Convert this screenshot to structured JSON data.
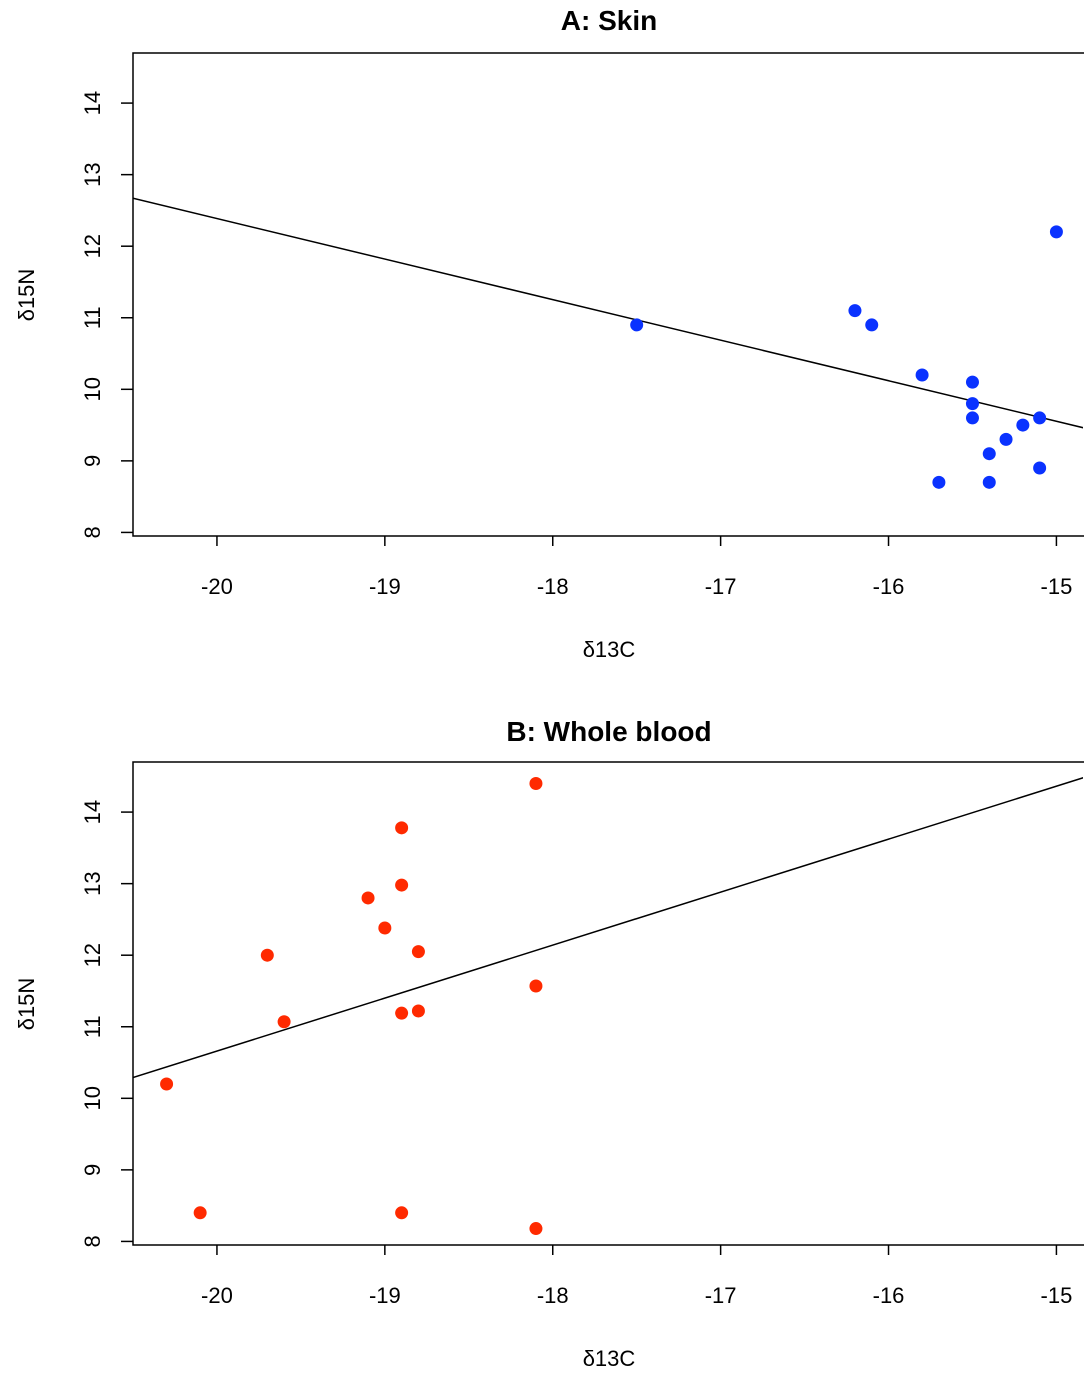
{
  "chart_data": [
    {
      "type": "scatter",
      "title": "A: Skin",
      "xlabel": "δ13C",
      "ylabel": "δ15N",
      "xlim": [
        -20.5,
        -14.8
      ],
      "ylim": [
        7.95,
        14.7
      ],
      "xticks": [
        -20,
        -19,
        -18,
        -17,
        -16,
        -15
      ],
      "yticks": [
        8,
        9,
        10,
        11,
        12,
        13,
        14
      ],
      "point_color": "#0a32ff",
      "points": [
        {
          "x": -17.5,
          "y": 10.9
        },
        {
          "x": -16.2,
          "y": 11.1
        },
        {
          "x": -16.1,
          "y": 10.9
        },
        {
          "x": -15.8,
          "y": 10.2
        },
        {
          "x": -15.5,
          "y": 10.1
        },
        {
          "x": -15.5,
          "y": 9.8
        },
        {
          "x": -15.5,
          "y": 9.6
        },
        {
          "x": -15.4,
          "y": 9.1
        },
        {
          "x": -15.3,
          "y": 9.3
        },
        {
          "x": -15.2,
          "y": 9.5
        },
        {
          "x": -15.1,
          "y": 9.6
        },
        {
          "x": -15.1,
          "y": 8.9
        },
        {
          "x": -15.0,
          "y": 12.2
        },
        {
          "x": -15.7,
          "y": 8.7
        },
        {
          "x": -15.4,
          "y": 8.7
        }
      ],
      "regression": {
        "x": [
          -20.5,
          -14.8
        ],
        "y": [
          12.67,
          9.44
        ]
      },
      "grid": false
    },
    {
      "type": "scatter",
      "title": "B: Whole blood",
      "xlabel": "δ13C",
      "ylabel": "δ15N",
      "xlim": [
        -20.5,
        -14.8
      ],
      "ylim": [
        7.95,
        14.7
      ],
      "xticks": [
        -20,
        -19,
        -18,
        -17,
        -16,
        -15
      ],
      "yticks": [
        8,
        9,
        10,
        11,
        12,
        13,
        14
      ],
      "point_color": "#ff2a00",
      "points": [
        {
          "x": -20.3,
          "y": 10.2
        },
        {
          "x": -20.1,
          "y": 8.4
        },
        {
          "x": -19.7,
          "y": 12.0
        },
        {
          "x": -19.6,
          "y": 11.07
        },
        {
          "x": -19.1,
          "y": 12.8
        },
        {
          "x": -19.0,
          "y": 12.38
        },
        {
          "x": -18.9,
          "y": 13.78
        },
        {
          "x": -18.9,
          "y": 12.98
        },
        {
          "x": -18.9,
          "y": 11.19
        },
        {
          "x": -18.9,
          "y": 8.4
        },
        {
          "x": -18.8,
          "y": 12.05
        },
        {
          "x": -18.8,
          "y": 11.22
        },
        {
          "x": -18.1,
          "y": 14.4
        },
        {
          "x": -18.1,
          "y": 11.57
        },
        {
          "x": -18.1,
          "y": 8.18
        }
      ],
      "regression": {
        "x": [
          -20.5,
          -14.8
        ],
        "y": [
          10.29,
          14.51
        ]
      },
      "grid": false
    }
  ]
}
